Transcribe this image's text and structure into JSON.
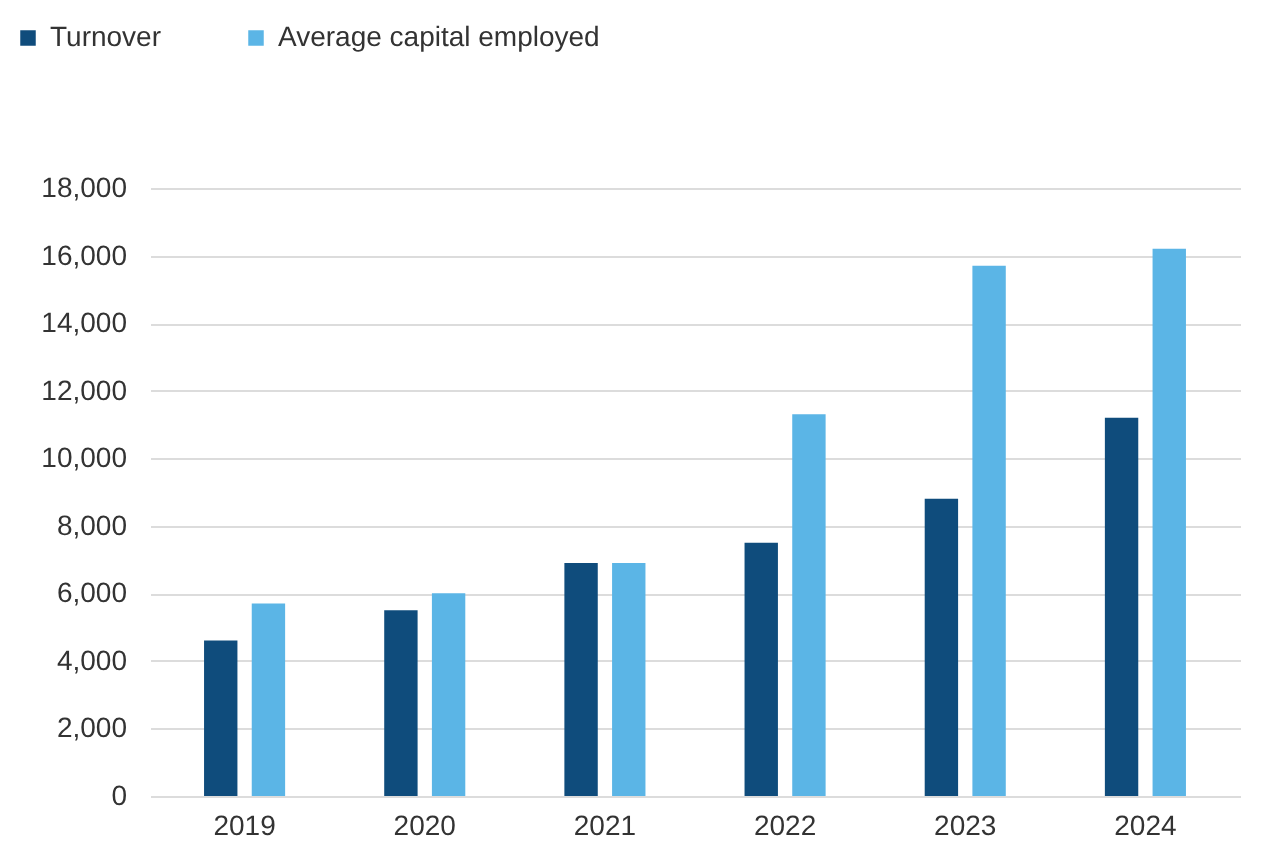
{
  "chart_data": {
    "type": "bar",
    "categories": [
      "2019",
      "2020",
      "2021",
      "2022",
      "2023",
      "2024"
    ],
    "series": [
      {
        "name": "Turnover",
        "color": "#0f4c7c",
        "values": [
          4600,
          5500,
          6900,
          7500,
          8800,
          11200
        ]
      },
      {
        "name": "Average capital employed",
        "color": "#5bb5e6",
        "values": [
          5700,
          6000,
          6900,
          11300,
          15700,
          16200
        ]
      }
    ],
    "ylim": [
      0,
      18000
    ],
    "yticks": [
      0,
      {
        "value": 2000,
        "label": "2,000"
      },
      {
        "value": 4000,
        "label": "4,000"
      },
      {
        "value": 6000,
        "label": "6,000"
      },
      {
        "value": 8000,
        "label": "8,000"
      },
      {
        "value": 10000,
        "label": "10,000"
      },
      {
        "value": 12000,
        "label": "12,000"
      },
      {
        "value": 14000,
        "label": "14,000"
      },
      {
        "value": 16000,
        "label": "16,000"
      },
      {
        "value": 18000,
        "label": "18,000"
      }
    ],
    "grid": "y",
    "legend": "top left"
  }
}
